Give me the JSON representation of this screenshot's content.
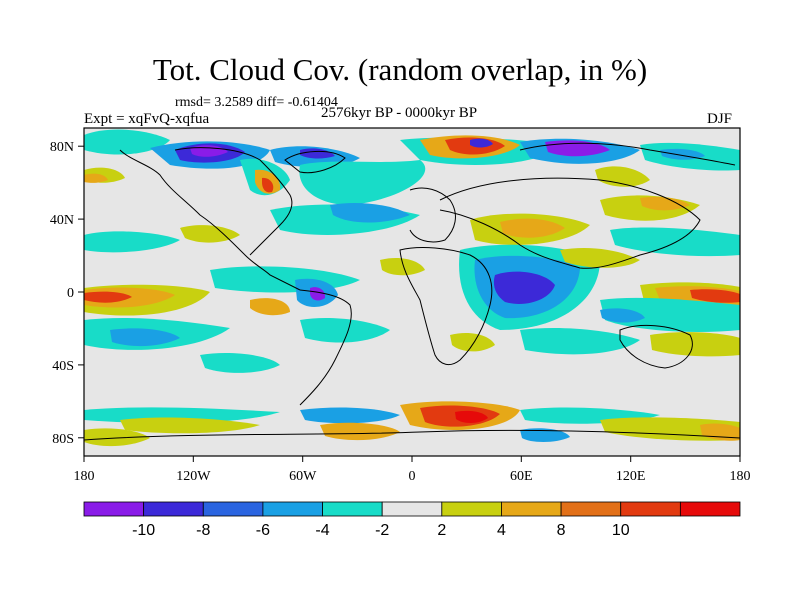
{
  "title": "Tot. Cloud Cov. (random overlap, in %)",
  "stats": "rmsd= 3.2589 diff= -0.61404",
  "experiment": "Expt = xqFvQ-xqfua",
  "period": "2576kyr BP - 0000kyr BP",
  "season": "DJF",
  "map": {
    "projection": "cylindrical equidistant",
    "lon_range": [
      -180,
      180
    ],
    "lat_range": [
      -90,
      90
    ],
    "lon_ticks": [
      "180",
      "120W",
      "60W",
      "0",
      "60E",
      "120E",
      "180"
    ],
    "lat_ticks": [
      "80N",
      "40N",
      "0",
      "40S",
      "80S"
    ]
  },
  "colorbar": {
    "levels": [
      "-10",
      "-8",
      "-6",
      "-4",
      "-2",
      "2",
      "4",
      "8",
      "10"
    ],
    "colors": [
      "#8a1ce8",
      "#3c29d8",
      "#2a64e0",
      "#1aa0e4",
      "#18dcc8",
      "#e6e6e6",
      "#c8d010",
      "#e6a818",
      "#e27018",
      "#e23a10",
      "#e60a0a"
    ]
  }
}
